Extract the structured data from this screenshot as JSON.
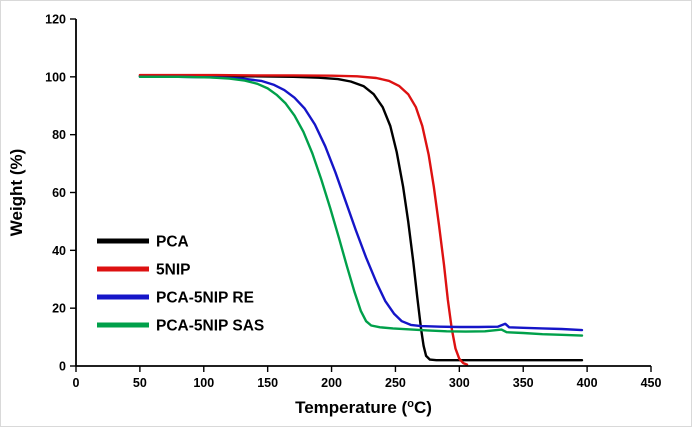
{
  "figure": {
    "background": "#ffffff",
    "axis_color": "#000000"
  },
  "chart_data": {
    "type": "line",
    "title": "",
    "xlabel": "Temperature (°C)",
    "ylabel": "Weight (%)",
    "xlim": [
      0,
      450
    ],
    "ylim": [
      0,
      120
    ],
    "xticks": [
      0,
      50,
      100,
      150,
      200,
      250,
      300,
      350,
      400,
      450
    ],
    "yticks": [
      0,
      20,
      40,
      60,
      80,
      100,
      120
    ],
    "grid": false,
    "legend_position": "inside-lower-left",
    "series": [
      {
        "name": "PCA",
        "color": "#000000",
        "points": [
          [
            50,
            100.3
          ],
          [
            80,
            100.3
          ],
          [
            110,
            100.2
          ],
          [
            140,
            100.2
          ],
          [
            170,
            100.0
          ],
          [
            190,
            99.7
          ],
          [
            205,
            99.2
          ],
          [
            215,
            98.4
          ],
          [
            225,
            96.8
          ],
          [
            233,
            94.0
          ],
          [
            240,
            89.5
          ],
          [
            246,
            83.0
          ],
          [
            251,
            74.0
          ],
          [
            256,
            62.0
          ],
          [
            260,
            50.0
          ],
          [
            264,
            36.0
          ],
          [
            267,
            24.0
          ],
          [
            270,
            13.0
          ],
          [
            272,
            7.0
          ],
          [
            274,
            3.5
          ],
          [
            277,
            2.2
          ],
          [
            282,
            2.0
          ],
          [
            300,
            2.0
          ],
          [
            330,
            2.0
          ],
          [
            360,
            2.0
          ],
          [
            396,
            2.0
          ]
        ]
      },
      {
        "name": "5NIP",
        "color": "#dd1111",
        "points": [
          [
            50,
            100.6
          ],
          [
            80,
            100.6
          ],
          [
            110,
            100.6
          ],
          [
            140,
            100.5
          ],
          [
            170,
            100.5
          ],
          [
            200,
            100.4
          ],
          [
            220,
            100.2
          ],
          [
            235,
            99.6
          ],
          [
            245,
            98.6
          ],
          [
            253,
            96.8
          ],
          [
            260,
            94.0
          ],
          [
            266,
            89.5
          ],
          [
            271,
            83.0
          ],
          [
            276,
            73.0
          ],
          [
            280,
            62.0
          ],
          [
            284,
            49.0
          ],
          [
            288,
            35.0
          ],
          [
            291,
            23.0
          ],
          [
            294,
            13.0
          ],
          [
            297,
            6.0
          ],
          [
            300,
            2.5
          ],
          [
            303,
            1.0
          ],
          [
            306,
            0.5
          ]
        ]
      },
      {
        "name": "PCA-5NIP RE",
        "color": "#1515c8",
        "points": [
          [
            50,
            100.0
          ],
          [
            80,
            100.0
          ],
          [
            110,
            99.8
          ],
          [
            130,
            99.4
          ],
          [
            145,
            98.6
          ],
          [
            155,
            97.2
          ],
          [
            163,
            95.4
          ],
          [
            171,
            92.8
          ],
          [
            179,
            89.0
          ],
          [
            187,
            83.5
          ],
          [
            195,
            76.0
          ],
          [
            203,
            67.0
          ],
          [
            211,
            57.0
          ],
          [
            219,
            47.0
          ],
          [
            227,
            37.5
          ],
          [
            235,
            29.0
          ],
          [
            242,
            22.5
          ],
          [
            249,
            18.0
          ],
          [
            255,
            15.5
          ],
          [
            262,
            14.2
          ],
          [
            270,
            13.8
          ],
          [
            285,
            13.6
          ],
          [
            300,
            13.5
          ],
          [
            315,
            13.5
          ],
          [
            330,
            13.6
          ],
          [
            336,
            14.6
          ],
          [
            339,
            13.4
          ],
          [
            350,
            13.2
          ],
          [
            365,
            13.0
          ],
          [
            380,
            12.8
          ],
          [
            396,
            12.4
          ]
        ]
      },
      {
        "name": "PCA-5NIP SAS",
        "color": "#00a04a",
        "points": [
          [
            50,
            100.0
          ],
          [
            80,
            100.0
          ],
          [
            105,
            99.8
          ],
          [
            120,
            99.4
          ],
          [
            132,
            98.7
          ],
          [
            142,
            97.6
          ],
          [
            150,
            96.0
          ],
          [
            157,
            93.8
          ],
          [
            164,
            90.8
          ],
          [
            171,
            86.6
          ],
          [
            178,
            81.0
          ],
          [
            185,
            73.5
          ],
          [
            192,
            64.5
          ],
          [
            199,
            54.5
          ],
          [
            206,
            44.0
          ],
          [
            212,
            34.5
          ],
          [
            218,
            25.5
          ],
          [
            223,
            19.0
          ],
          [
            227,
            15.5
          ],
          [
            231,
            14.0
          ],
          [
            238,
            13.4
          ],
          [
            248,
            13.0
          ],
          [
            260,
            12.7
          ],
          [
            275,
            12.3
          ],
          [
            290,
            12.0
          ],
          [
            305,
            11.9
          ],
          [
            320,
            12.0
          ],
          [
            333,
            12.6
          ],
          [
            337,
            11.7
          ],
          [
            350,
            11.4
          ],
          [
            365,
            11.0
          ],
          [
            380,
            10.8
          ],
          [
            396,
            10.5
          ]
        ]
      }
    ]
  }
}
